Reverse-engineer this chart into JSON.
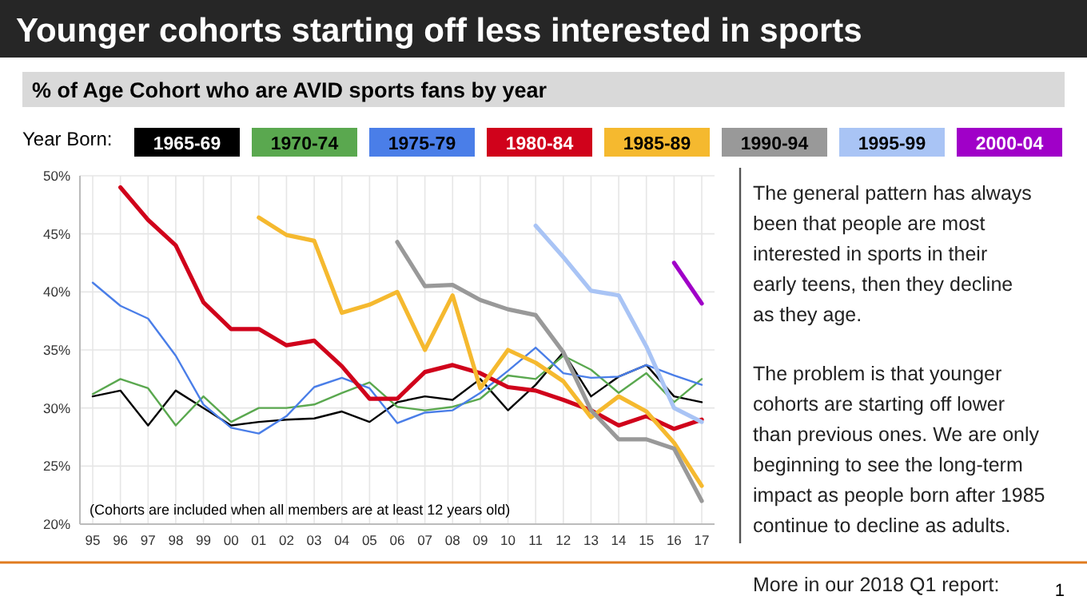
{
  "chart_data": {
    "type": "line",
    "title": "Younger cohorts starting off less interested in sports",
    "subtitle": "% of Age Cohort who are AVID sports fans by year",
    "legend_title": "Year Born:",
    "legend": "top",
    "grid": true,
    "categories": [
      "95",
      "96",
      "97",
      "98",
      "99",
      "00",
      "01",
      "02",
      "03",
      "04",
      "05",
      "06",
      "07",
      "08",
      "09",
      "10",
      "11",
      "12",
      "13",
      "14",
      "15",
      "16",
      "17"
    ],
    "ylim": [
      20,
      50
    ],
    "yticks": [
      {
        "value": 20,
        "label": "20%"
      },
      {
        "value": 25,
        "label": "25%"
      },
      {
        "value": 30,
        "label": "30%"
      },
      {
        "value": 35,
        "label": "35%"
      },
      {
        "value": 40,
        "label": "40%"
      },
      {
        "value": 45,
        "label": "45%"
      },
      {
        "value": 50,
        "label": "50%"
      }
    ],
    "series": [
      {
        "name": "1965-69",
        "color": "#000000",
        "values": [
          31,
          31.5,
          28.5,
          31.5,
          30,
          28.5,
          28.8,
          29,
          29.1,
          29.7,
          28.8,
          30.5,
          31,
          30.7,
          32.5,
          29.8,
          32,
          34.8,
          31,
          32.7,
          33.7,
          31,
          30.5
        ]
      },
      {
        "name": "1970-74",
        "color": "#5aa84f",
        "values": [
          31.2,
          32.5,
          31.7,
          28.5,
          31,
          28.8,
          30,
          30,
          30.3,
          31.3,
          32.2,
          30.1,
          29.8,
          30.1,
          30.8,
          32.8,
          32.5,
          34.5,
          33.3,
          31.3,
          33,
          30.5,
          32.5
        ]
      },
      {
        "name": "1975-79",
        "color": "#4a7ee8",
        "values": [
          40.8,
          38.8,
          37.7,
          34.5,
          30.3,
          28.3,
          27.8,
          29.3,
          31.8,
          32.6,
          31.7,
          28.7,
          29.6,
          29.8,
          31.3,
          33.2,
          35.2,
          33,
          32.6,
          32.7,
          33.7,
          32.8,
          32
        ]
      },
      {
        "name": "1980-84",
        "color": "#d0021b",
        "values": [
          null,
          49,
          46.2,
          44,
          39.1,
          36.8,
          36.8,
          35.4,
          35.8,
          33.6,
          30.8,
          30.8,
          33.1,
          33.7,
          33,
          31.8,
          31.5,
          30.7,
          29.8,
          28.5,
          29.3,
          28.2,
          29
        ]
      },
      {
        "name": "1985-89",
        "color": "#f5b92f",
        "values": [
          null,
          null,
          null,
          null,
          null,
          null,
          46.4,
          44.9,
          44.4,
          38.2,
          38.9,
          40,
          35,
          39.7,
          31.7,
          35,
          33.9,
          32.3,
          29.2,
          31,
          29.7,
          27,
          23.3
        ]
      },
      {
        "name": "1990-94",
        "color": "#999999",
        "values": [
          null,
          null,
          null,
          null,
          null,
          null,
          null,
          null,
          null,
          null,
          null,
          44.3,
          40.5,
          40.6,
          39.3,
          38.5,
          38,
          34.8,
          29.8,
          27.3,
          27.3,
          26.5,
          22
        ]
      },
      {
        "name": "1995-99",
        "color": "#a9c4f5",
        "values": [
          null,
          null,
          null,
          null,
          null,
          null,
          null,
          null,
          null,
          null,
          null,
          null,
          null,
          null,
          null,
          null,
          45.7,
          43,
          40.1,
          39.7,
          35.3,
          30,
          28.8
        ]
      },
      {
        "name": "2000-04",
        "color": "#a000c8",
        "values": [
          null,
          null,
          null,
          null,
          null,
          null,
          null,
          null,
          null,
          null,
          null,
          null,
          null,
          null,
          null,
          null,
          null,
          null,
          null,
          null,
          null,
          42.5,
          39
        ]
      }
    ],
    "annotations": [
      "(Cohorts are included when all members are at least 12 years old)",
      "The general pattern has always been that people are most interested in sports in their early teens, then they decline as they age.",
      "The problem is that younger cohorts are starting off lower than previous ones. We are only beginning to see the long-term impact as people born after 1985 continue to decline as adults.",
      "More in our 2018 Q1 report:",
      "1"
    ]
  }
}
